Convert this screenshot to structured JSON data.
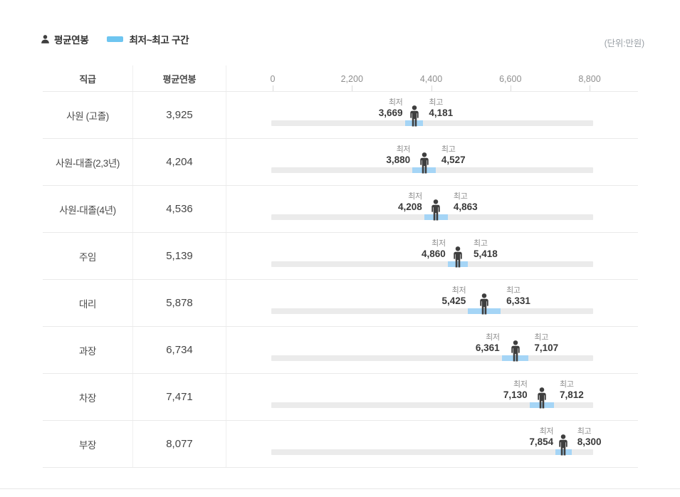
{
  "page": {
    "unit_label": "(단위:만원)"
  },
  "legend": {
    "avg_label": "평균연봉",
    "range_label": "최저~최고 구간"
  },
  "table_header": {
    "position": "직급",
    "average": "평균연봉"
  },
  "range_labels": {
    "min": "최저",
    "max": "최고"
  },
  "colors": {
    "legend_swatch": "#6ec5f0",
    "range_bar": "#a5d5f6",
    "track": "#ebebeb",
    "person_icon": "#3f3f3f"
  },
  "chart_data": {
    "type": "bar",
    "orientation": "horizontal-range",
    "unit": "만원",
    "axis_ticks": [
      0,
      2200,
      4400,
      6600,
      8800
    ],
    "xlim": [
      0,
      8800
    ],
    "categories": [
      "사원 (고졸)",
      "사원-대졸(2,3년)",
      "사원-대졸(4년)",
      "주임",
      "대리",
      "과장",
      "차장",
      "부장"
    ],
    "series": [
      {
        "name": "평균연봉",
        "values": [
          3925,
          4204,
          4536,
          5139,
          5878,
          6734,
          7471,
          8077
        ]
      },
      {
        "name": "최저",
        "values": [
          3669,
          3880,
          4208,
          4860,
          5425,
          6361,
          7130,
          7854
        ]
      },
      {
        "name": "최고",
        "values": [
          4181,
          4527,
          4863,
          5418,
          6331,
          7107,
          7812,
          8300
        ]
      }
    ]
  }
}
